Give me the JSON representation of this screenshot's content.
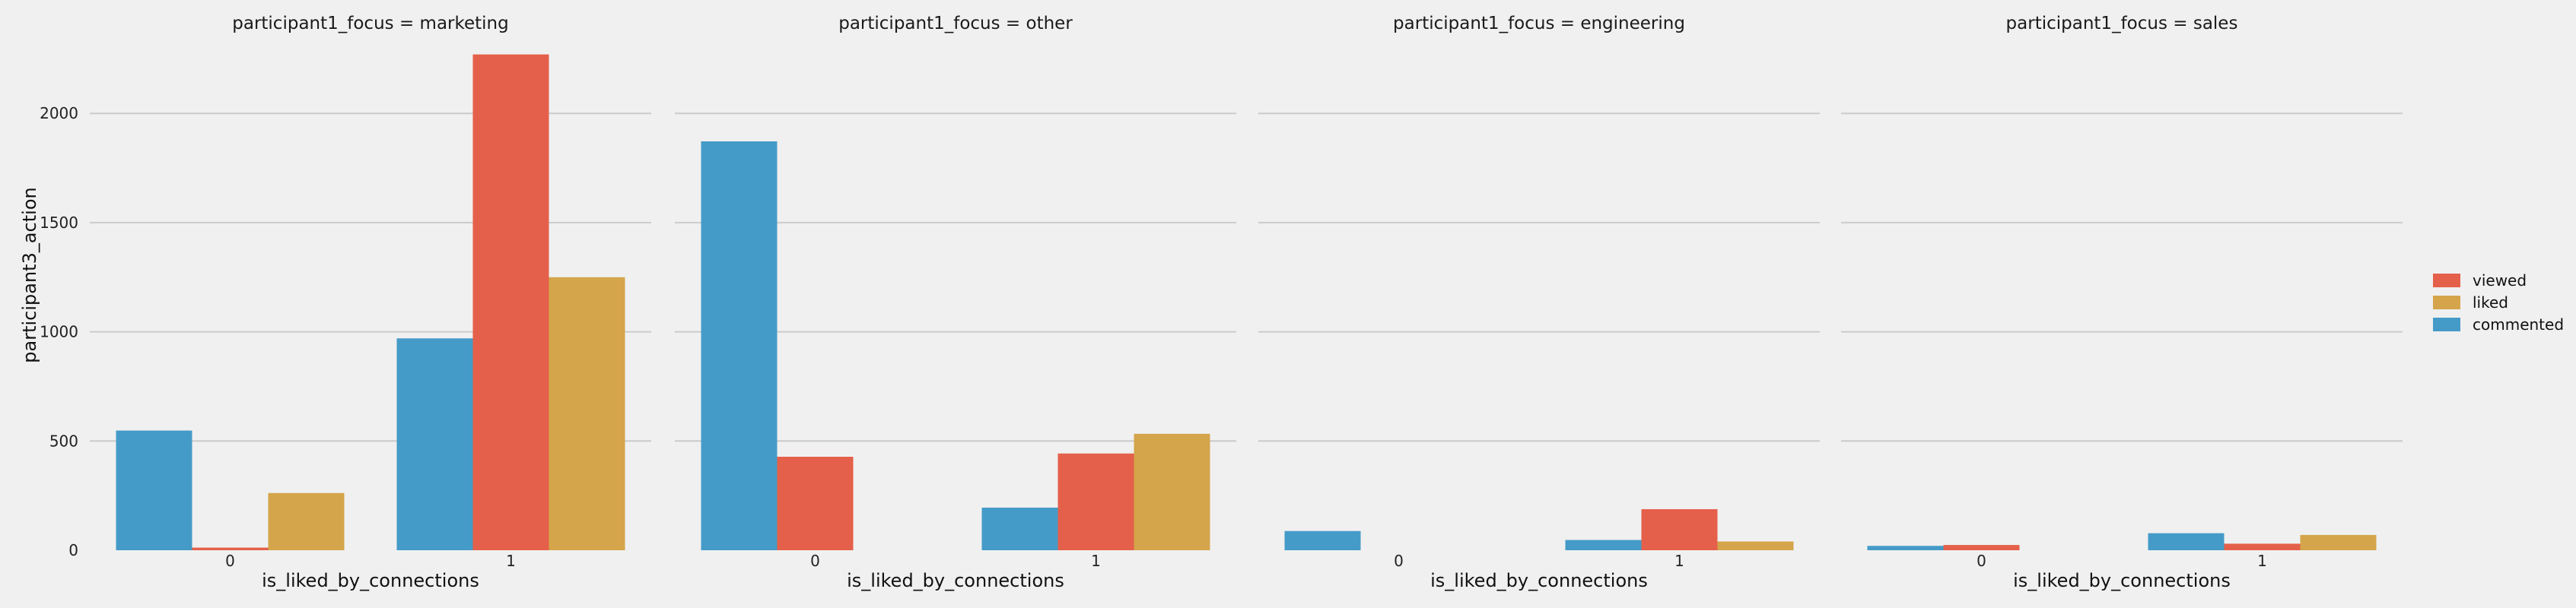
{
  "chart_data": {
    "type": "bar",
    "ylabel": "participant3_action",
    "xlabel": "is_liked_by_connections",
    "categories": [
      "0",
      "1"
    ],
    "yticks": [
      0,
      500,
      1000,
      1500,
      2000
    ],
    "ylim": [
      0,
      2380
    ],
    "grid": true,
    "legend_position": "right",
    "legend": [
      {
        "name": "viewed",
        "color": "#e5604a"
      },
      {
        "name": "liked",
        "color": "#d4a54a"
      },
      {
        "name": "commented",
        "color": "#459bc8"
      }
    ],
    "hue_order": [
      "commented",
      "viewed",
      "liked"
    ],
    "colors": {
      "commented": "#459bc8",
      "viewed": "#e5604a",
      "liked": "#d4a54a"
    },
    "panels": [
      {
        "title": "participant1_focus = marketing",
        "values": {
          "commented": [
            548,
            970
          ],
          "viewed": [
            12,
            2270
          ],
          "liked": [
            262,
            1250
          ]
        }
      },
      {
        "title": "participant1_focus = other",
        "values": {
          "commented": [
            1872,
            195
          ],
          "viewed": [
            428,
            443
          ],
          "liked": [
            0,
            533
          ]
        }
      },
      {
        "title": "participant1_focus = engineering",
        "values": {
          "commented": [
            88,
            47
          ],
          "viewed": [
            0,
            188
          ],
          "liked": [
            0,
            40
          ]
        }
      },
      {
        "title": "participant1_focus = sales",
        "values": {
          "commented": [
            20,
            78
          ],
          "viewed": [
            24,
            30
          ],
          "liked": [
            0,
            70
          ]
        }
      }
    ]
  }
}
